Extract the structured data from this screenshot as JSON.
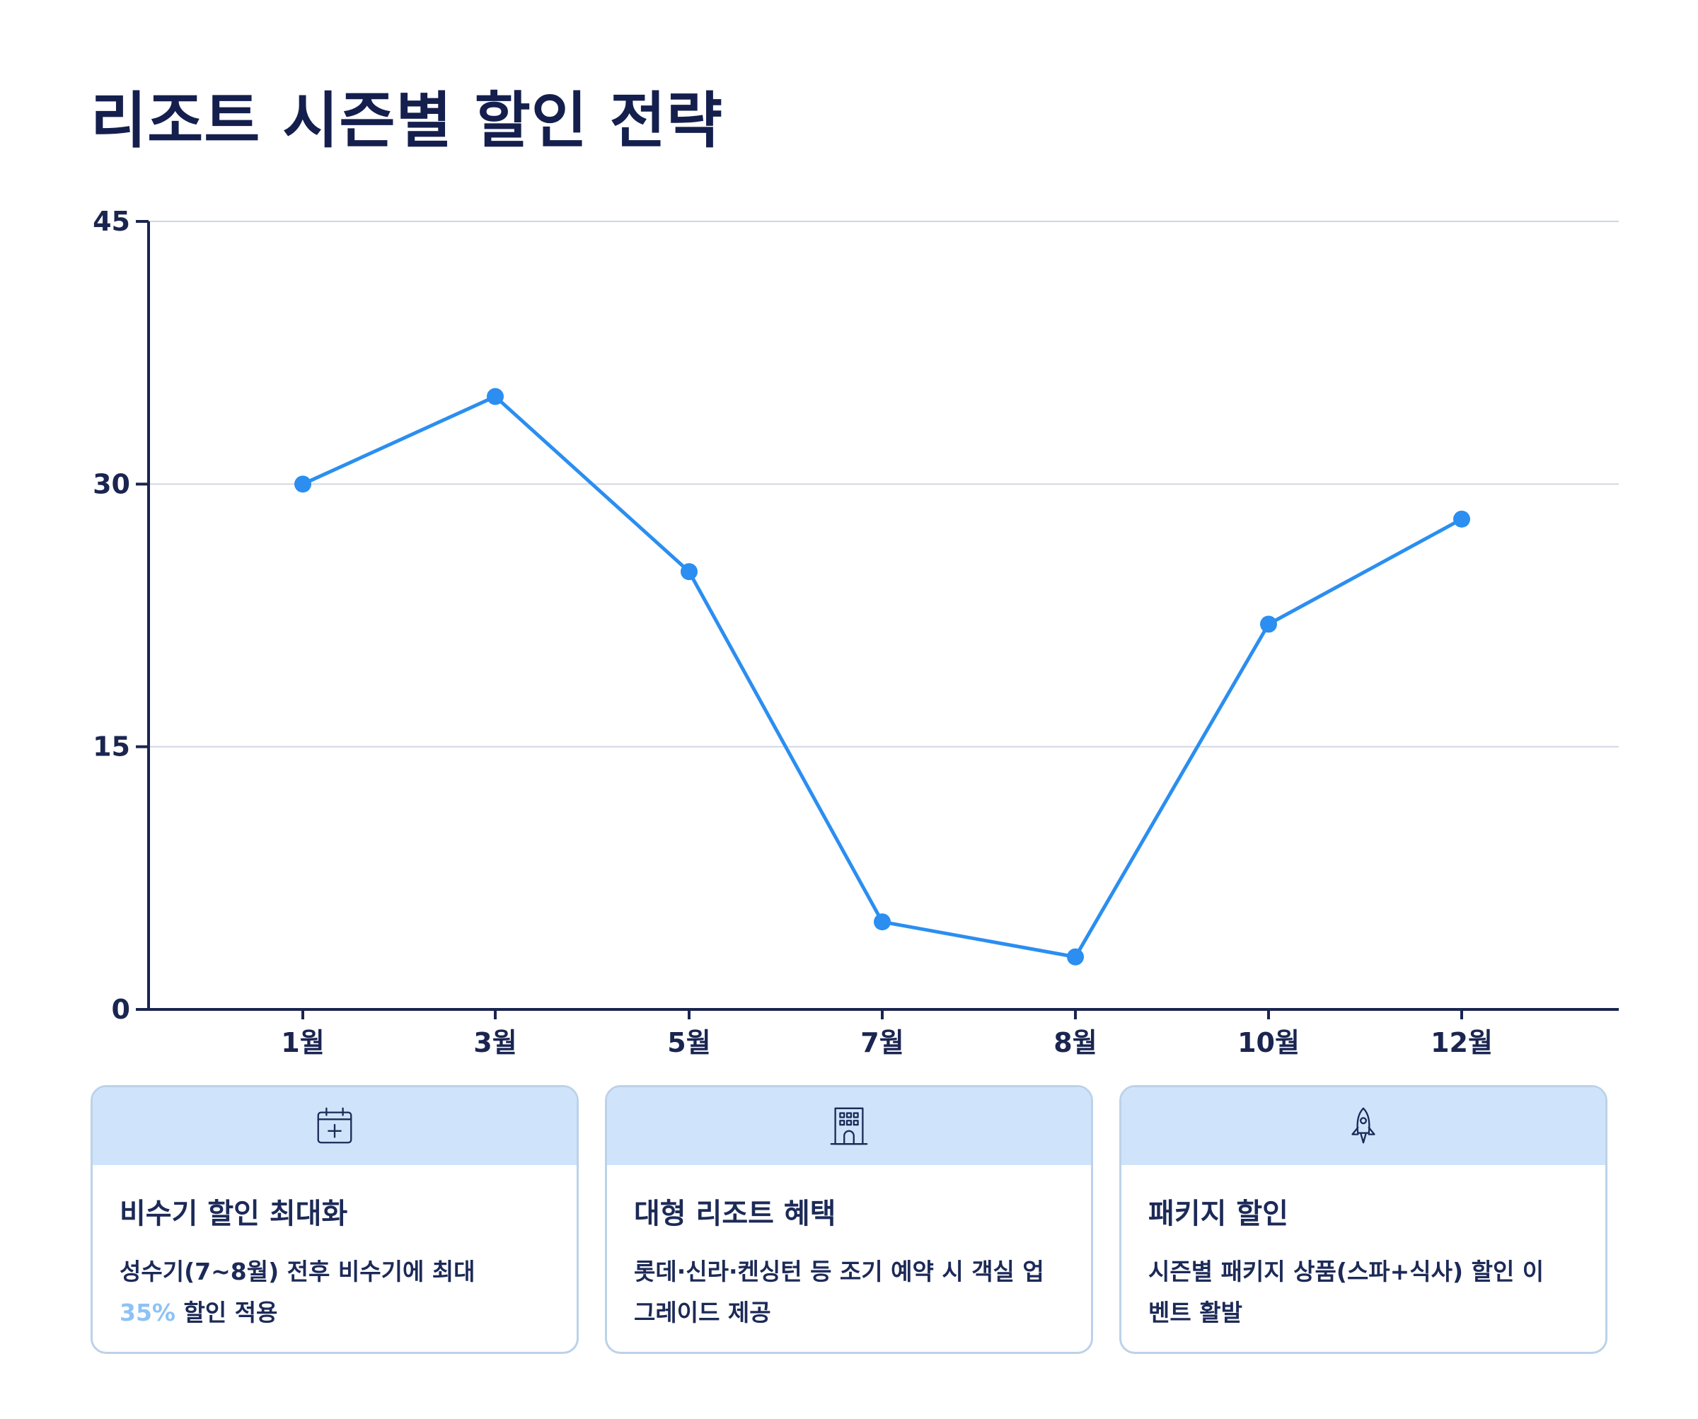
{
  "title": "리조트 시즌별 할인 전략",
  "chart_data": {
    "type": "line",
    "categories": [
      "1월",
      "3월",
      "5월",
      "7월",
      "8월",
      "10월",
      "12월"
    ],
    "values": [
      30,
      35,
      25,
      5,
      3,
      22,
      28
    ],
    "y_ticks": [
      "0",
      "15",
      "30",
      "45"
    ],
    "ylim": [
      0,
      45
    ],
    "grid": true,
    "line_color": "#2b8ef0",
    "axis_color": "#1a2550",
    "grid_color": "#d2d6e2"
  },
  "cards": [
    {
      "icon": "calendar-plus-icon",
      "title": "비수기 할인 최대화",
      "text_lines": [
        "성수기(7~8월) 전후 비수기에 최대"
      ],
      "highlight": "35%",
      "text_after_highlight": " 할인 적용"
    },
    {
      "icon": "building-icon",
      "title": "대형 리조트 혜택",
      "text_lines": [
        "롯데·신라·켄싱턴 등 조기 예약 시 객실 업",
        "그레이드 제공"
      ]
    },
    {
      "icon": "rocket-icon",
      "title": "패키지 할인",
      "text_lines": [
        "시즌별 패키지 상품(스파+식사) 할인 이",
        "벤트 활발"
      ]
    }
  ],
  "colors": {
    "title": "#141f4d",
    "card_header_bg": "#cfe4fb",
    "card_border": "#bcd2e8",
    "highlight": "#8ec2f5"
  }
}
